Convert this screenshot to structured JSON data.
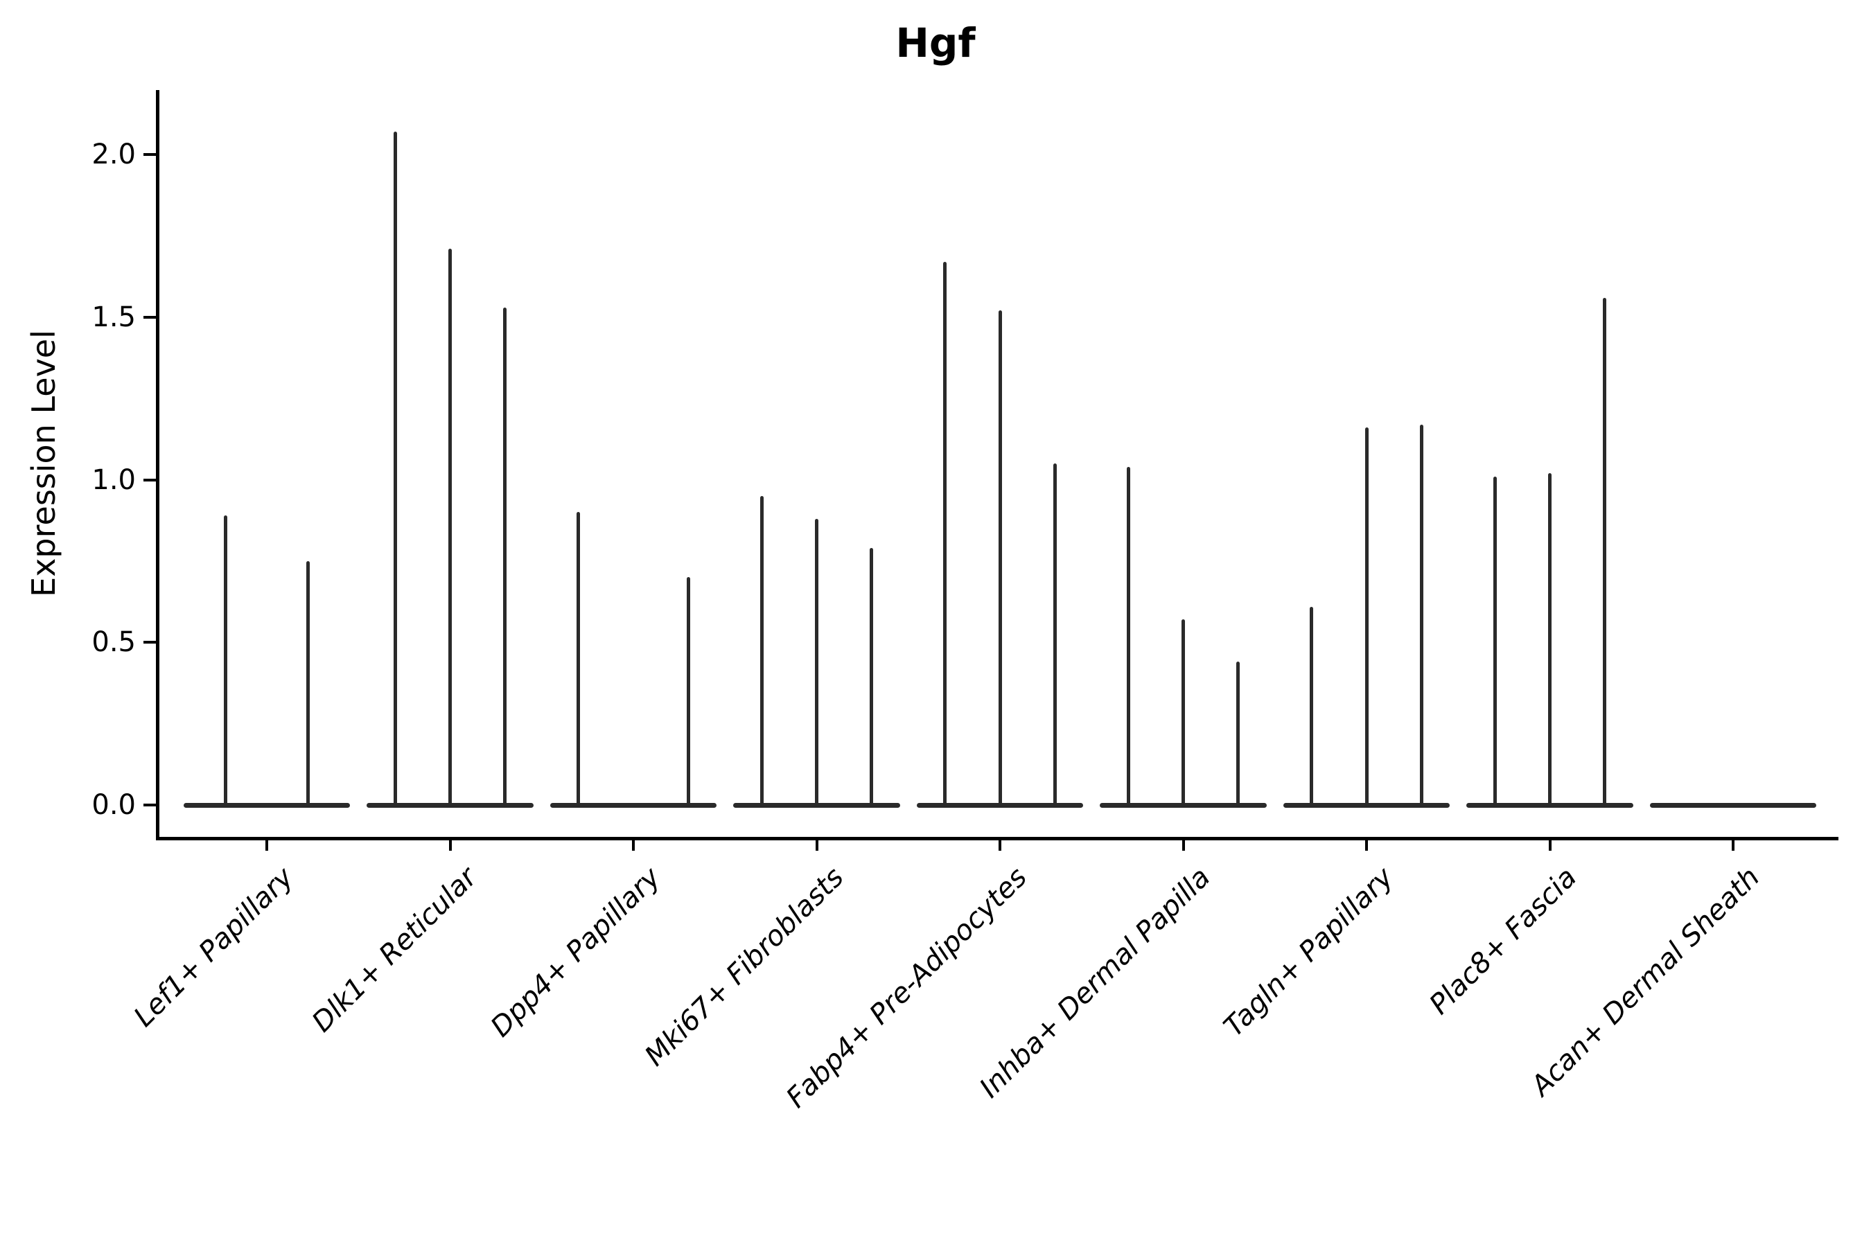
{
  "chart_data": {
    "type": "violin",
    "title": "Hgf",
    "xlabel": "",
    "ylabel": "Expression Level",
    "ylim": [
      -0.1,
      2.2
    ],
    "grid": false,
    "legend": "none",
    "x_tick_style": "italic, rotated 45deg, right-anchored",
    "yticks": [
      {
        "label": "0.0",
        "value": 0.0
      },
      {
        "label": "0.5",
        "value": 0.5
      },
      {
        "label": "1.0",
        "value": 1.0
      },
      {
        "label": "1.5",
        "value": 1.5
      },
      {
        "label": "2.0",
        "value": 2.0
      }
    ],
    "description": "Single-cell expression violin plot; each category shows 2-3 sparse violins: flat base at 0 with a thin spike rising to the max expression value.",
    "base_halfwidth": 0.455,
    "categories": [
      {
        "label": "Lef1+ Papillary",
        "violins": [
          {
            "offset": -0.225,
            "max": 0.89
          },
          {
            "offset": 0.225,
            "max": 0.75
          }
        ]
      },
      {
        "label": "Dlk1+ Reticular",
        "violins": [
          {
            "offset": -0.3,
            "max": 2.07
          },
          {
            "offset": 0.0,
            "max": 1.71
          },
          {
            "offset": 0.3,
            "max": 1.53
          }
        ]
      },
      {
        "label": "Dpp4+ Papillary",
        "violins": [
          {
            "offset": -0.3,
            "max": 0.9
          },
          {
            "offset": 0.3,
            "max": 0.7
          }
        ]
      },
      {
        "label": "Mki67+ Fibroblasts",
        "violins": [
          {
            "offset": -0.3,
            "max": 0.95
          },
          {
            "offset": 0.0,
            "max": 0.88
          },
          {
            "offset": 0.3,
            "max": 0.79
          }
        ]
      },
      {
        "label": "Fabp4+ Pre-Adipocytes",
        "violins": [
          {
            "offset": -0.3,
            "max": 1.67
          },
          {
            "offset": 0.0,
            "max": 1.52
          },
          {
            "offset": 0.3,
            "max": 1.05
          }
        ]
      },
      {
        "label": "Inhba+ Dermal Papilla",
        "violins": [
          {
            "offset": -0.3,
            "max": 1.04
          },
          {
            "offset": 0.0,
            "max": 0.57
          },
          {
            "offset": 0.3,
            "max": 0.44
          }
        ]
      },
      {
        "label": "Tagln+ Papillary",
        "violins": [
          {
            "offset": -0.3,
            "max": 0.61
          },
          {
            "offset": 0.0,
            "max": 1.16
          },
          {
            "offset": 0.3,
            "max": 1.17
          }
        ]
      },
      {
        "label": "Plac8+ Fascia",
        "violins": [
          {
            "offset": -0.3,
            "max": 1.01
          },
          {
            "offset": 0.0,
            "max": 1.02
          },
          {
            "offset": 0.3,
            "max": 1.56
          }
        ]
      },
      {
        "label": "Acan+ Dermal Sheath",
        "violins": []
      }
    ],
    "colors": {
      "violin": "#2a2a2a",
      "axis": "#000000",
      "text": "#000000",
      "background": "#ffffff"
    }
  }
}
